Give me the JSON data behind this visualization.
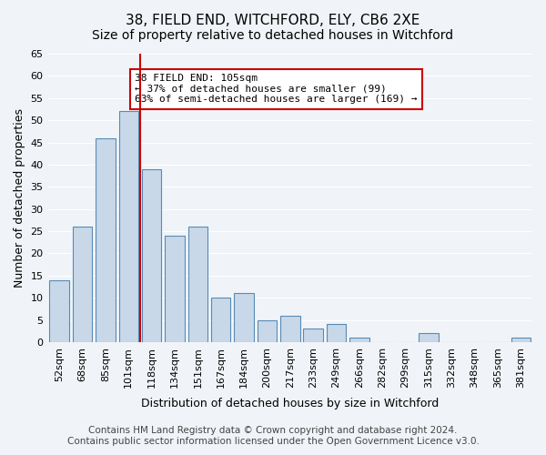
{
  "title": "38, FIELD END, WITCHFORD, ELY, CB6 2XE",
  "subtitle": "Size of property relative to detached houses in Witchford",
  "xlabel": "Distribution of detached houses by size in Witchford",
  "ylabel": "Number of detached properties",
  "categories": [
    "52sqm",
    "68sqm",
    "85sqm",
    "101sqm",
    "118sqm",
    "134sqm",
    "151sqm",
    "167sqm",
    "184sqm",
    "200sqm",
    "217sqm",
    "233sqm",
    "249sqm",
    "266sqm",
    "282sqm",
    "299sqm",
    "315sqm",
    "332sqm",
    "348sqm",
    "365sqm",
    "381sqm"
  ],
  "values": [
    14,
    26,
    46,
    52,
    39,
    24,
    26,
    10,
    11,
    5,
    6,
    3,
    4,
    1,
    0,
    0,
    2,
    0,
    0,
    0,
    1
  ],
  "bar_color": "#c8d8e8",
  "bar_edge_color": "#5a8ab5",
  "vline_x_index": 3,
  "vline_color": "#cc0000",
  "ylim": [
    0,
    65
  ],
  "yticks": [
    0,
    5,
    10,
    15,
    20,
    25,
    30,
    35,
    40,
    45,
    50,
    55,
    60,
    65
  ],
  "annotation_title": "38 FIELD END: 105sqm",
  "annotation_line1": "← 37% of detached houses are smaller (99)",
  "annotation_line2": "63% of semi-detached houses are larger (169) →",
  "annotation_box_color": "#ffffff",
  "annotation_box_edge": "#cc0000",
  "footer_line1": "Contains HM Land Registry data © Crown copyright and database right 2024.",
  "footer_line2": "Contains public sector information licensed under the Open Government Licence v3.0.",
  "background_color": "#f0f4f8",
  "grid_color": "#ffffff",
  "title_fontsize": 11,
  "subtitle_fontsize": 10,
  "xlabel_fontsize": 9,
  "ylabel_fontsize": 9,
  "tick_fontsize": 8,
  "footer_fontsize": 7.5
}
